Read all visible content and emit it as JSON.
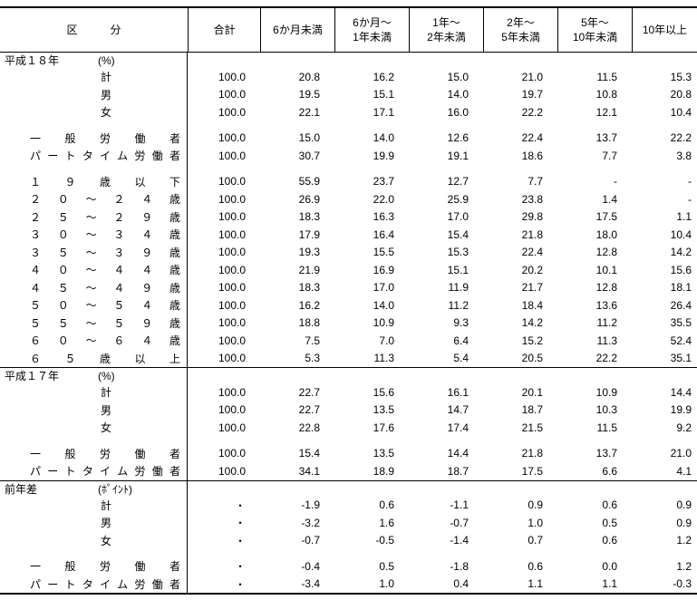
{
  "header": {
    "category": [
      "区",
      "分"
    ],
    "columns": [
      "合計",
      "6か月未満",
      "6か月～\n1年未満",
      "1年～\n2年未満",
      "2年～\n5年未満",
      "5年～\n10年未満",
      "10年以上"
    ]
  },
  "sections": [
    {
      "title": "平成１８年",
      "unit": "(%)",
      "groups": [
        [
          {
            "label": "計",
            "kind": "sex",
            "values": [
              "100.0",
              "20.8",
              "16.2",
              "15.0",
              "21.0",
              "11.5",
              "15.3"
            ]
          },
          {
            "label": "男",
            "kind": "sex",
            "values": [
              "100.0",
              "19.5",
              "15.1",
              "14.0",
              "19.7",
              "10.8",
              "20.8"
            ]
          },
          {
            "label": "女",
            "kind": "sex",
            "values": [
              "100.0",
              "22.1",
              "17.1",
              "16.0",
              "22.2",
              "12.1",
              "10.4"
            ]
          }
        ],
        [
          {
            "label": "一般労働者",
            "kind": "spread",
            "values": [
              "100.0",
              "15.0",
              "14.0",
              "12.6",
              "22.4",
              "13.7",
              "22.2"
            ]
          },
          {
            "label": "パートタイム労働者",
            "kind": "spread",
            "values": [
              "100.0",
              "30.7",
              "19.9",
              "19.1",
              "18.6",
              "7.7",
              "3.8"
            ]
          }
        ],
        [
          {
            "label": "１９歳以下",
            "kind": "spread",
            "values": [
              "100.0",
              "55.9",
              "23.7",
              "12.7",
              "7.7",
              "-",
              "-"
            ]
          },
          {
            "label": "２０～２４歳",
            "kind": "spread",
            "values": [
              "100.0",
              "26.9",
              "22.0",
              "25.9",
              "23.8",
              "1.4",
              "-"
            ]
          },
          {
            "label": "２５～２９歳",
            "kind": "spread",
            "values": [
              "100.0",
              "18.3",
              "16.3",
              "17.0",
              "29.8",
              "17.5",
              "1.1"
            ]
          },
          {
            "label": "３０～３４歳",
            "kind": "spread",
            "values": [
              "100.0",
              "17.9",
              "16.4",
              "15.4",
              "21.8",
              "18.0",
              "10.4"
            ]
          },
          {
            "label": "３５～３９歳",
            "kind": "spread",
            "values": [
              "100.0",
              "19.3",
              "15.5",
              "15.3",
              "22.4",
              "12.8",
              "14.2"
            ]
          },
          {
            "label": "４０～４４歳",
            "kind": "spread",
            "values": [
              "100.0",
              "21.9",
              "16.9",
              "15.1",
              "20.2",
              "10.1",
              "15.6"
            ]
          },
          {
            "label": "４５～４９歳",
            "kind": "spread",
            "values": [
              "100.0",
              "18.3",
              "17.0",
              "11.9",
              "21.7",
              "12.8",
              "18.1"
            ]
          },
          {
            "label": "５０～５４歳",
            "kind": "spread",
            "values": [
              "100.0",
              "16.2",
              "14.0",
              "11.2",
              "18.4",
              "13.6",
              "26.4"
            ]
          },
          {
            "label": "５５～５９歳",
            "kind": "spread",
            "values": [
              "100.0",
              "18.8",
              "10.9",
              "9.3",
              "14.2",
              "11.2",
              "35.5"
            ]
          },
          {
            "label": "６０～６４歳",
            "kind": "spread",
            "values": [
              "100.0",
              "7.5",
              "7.0",
              "6.4",
              "15.2",
              "11.3",
              "52.4"
            ]
          },
          {
            "label": "６５歳以上",
            "kind": "spread",
            "values": [
              "100.0",
              "5.3",
              "11.3",
              "5.4",
              "20.5",
              "22.2",
              "35.1"
            ]
          }
        ]
      ]
    },
    {
      "title": "平成１７年",
      "unit": "(%)",
      "groups": [
        [
          {
            "label": "計",
            "kind": "sex",
            "values": [
              "100.0",
              "22.7",
              "15.6",
              "16.1",
              "20.1",
              "10.9",
              "14.4"
            ]
          },
          {
            "label": "男",
            "kind": "sex",
            "values": [
              "100.0",
              "22.7",
              "13.5",
              "14.7",
              "18.7",
              "10.3",
              "19.9"
            ]
          },
          {
            "label": "女",
            "kind": "sex",
            "values": [
              "100.0",
              "22.8",
              "17.6",
              "17.4",
              "21.5",
              "11.5",
              "9.2"
            ]
          }
        ],
        [
          {
            "label": "一般労働者",
            "kind": "spread",
            "values": [
              "100.0",
              "15.4",
              "13.5",
              "14.4",
              "21.8",
              "13.7",
              "21.0"
            ]
          },
          {
            "label": "パートタイム労働者",
            "kind": "spread",
            "values": [
              "100.0",
              "34.1",
              "18.9",
              "18.7",
              "17.5",
              "6.6",
              "4.1"
            ]
          }
        ]
      ]
    },
    {
      "title": "前年差",
      "unit": "(ﾎﾟｲﾝﾄ)",
      "groups": [
        [
          {
            "label": "計",
            "kind": "sex",
            "values": [
              "・",
              "-1.9",
              "0.6",
              "-1.1",
              "0.9",
              "0.6",
              "0.9"
            ]
          },
          {
            "label": "男",
            "kind": "sex",
            "values": [
              "・",
              "-3.2",
              "1.6",
              "-0.7",
              "1.0",
              "0.5",
              "0.9"
            ]
          },
          {
            "label": "女",
            "kind": "sex",
            "values": [
              "・",
              "-0.7",
              "-0.5",
              "-1.4",
              "0.7",
              "0.6",
              "1.2"
            ]
          }
        ],
        [
          {
            "label": "一般労働者",
            "kind": "spread",
            "values": [
              "・",
              "-0.4",
              "0.5",
              "-1.8",
              "0.6",
              "0.0",
              "1.2"
            ]
          },
          {
            "label": "パートタイム労働者",
            "kind": "spread",
            "values": [
              "・",
              "-3.4",
              "1.0",
              "0.4",
              "1.1",
              "1.1",
              "-0.3"
            ]
          }
        ]
      ]
    }
  ]
}
